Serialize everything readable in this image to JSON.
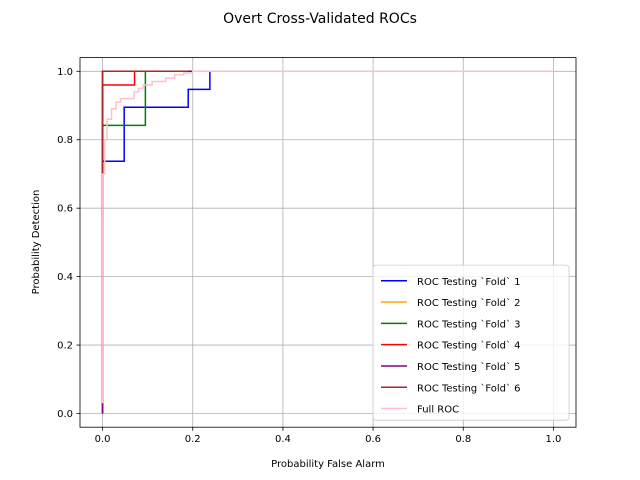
{
  "chart_data": {
    "type": "line",
    "title": "Overt Cross-Validated ROCs",
    "xlabel": "Probability False Alarm",
    "ylabel": "Probability Detection",
    "xlim": [
      -0.05,
      1.05
    ],
    "ylim": [
      -0.04,
      1.04
    ],
    "xticks": [
      0.0,
      0.2,
      0.4,
      0.6,
      0.8,
      1.0
    ],
    "xtick_labels": [
      "0.0",
      "0.2",
      "0.4",
      "0.6",
      "0.8",
      "1.0"
    ],
    "yticks": [
      0.0,
      0.2,
      0.4,
      0.6,
      0.8,
      1.0
    ],
    "ytick_labels": [
      "0.0",
      "0.2",
      "0.4",
      "0.6",
      "0.8",
      "1.0"
    ],
    "grid": true,
    "legend_position": "lower-right",
    "series": [
      {
        "name": "ROC Testing `Fold` 1",
        "color": "#0000ff",
        "x": [
          0.0,
          0.0,
          0.0,
          0.048,
          0.048,
          0.19,
          0.19,
          0.238,
          0.238,
          1.0
        ],
        "y": [
          0.0,
          0.737,
          0.737,
          0.737,
          0.895,
          0.895,
          0.947,
          0.947,
          1.0,
          1.0
        ]
      },
      {
        "name": "ROC Testing `Fold` 2",
        "color": "#ffa500",
        "x": [
          0.0,
          0.0,
          1.0
        ],
        "y": [
          0.0,
          1.0,
          1.0
        ]
      },
      {
        "name": "ROC Testing `Fold` 3",
        "color": "#008000",
        "x": [
          0.0,
          0.0,
          0.095,
          0.095,
          1.0
        ],
        "y": [
          0.0,
          0.842,
          0.842,
          1.0,
          1.0
        ]
      },
      {
        "name": "ROC Testing `Fold` 4",
        "color": "#ff0000",
        "x": [
          0.0,
          0.0,
          0.0,
          0.071,
          0.071,
          0.19
        ],
        "y": [
          0.56,
          0.96,
          0.96,
          0.96,
          1.0,
          1.0
        ]
      },
      {
        "name": "ROC Testing `Fold` 5",
        "color": "#800080",
        "x": [
          0.0,
          0.0,
          1.0
        ],
        "y": [
          0.0,
          1.0,
          1.0
        ]
      },
      {
        "name": "ROC Testing `Fold` 6",
        "color": "#a52a2a",
        "x": [
          0.0,
          0.0,
          0.19
        ],
        "y": [
          0.56,
          1.0,
          1.0
        ]
      },
      {
        "name": "Full ROC",
        "color": "#ffc0cb",
        "x": [
          0.0,
          0.0,
          0.005,
          0.005,
          0.01,
          0.01,
          0.02,
          0.02,
          0.03,
          0.03,
          0.04,
          0.04,
          0.07,
          0.07,
          0.08,
          0.08,
          0.09,
          0.09,
          0.11,
          0.11,
          0.14,
          0.14,
          0.16,
          0.16,
          0.18,
          0.18,
          0.2,
          0.2,
          0.24,
          0.24,
          1.0
        ],
        "y": [
          0.03,
          0.7,
          0.7,
          0.8,
          0.8,
          0.86,
          0.86,
          0.89,
          0.89,
          0.91,
          0.91,
          0.92,
          0.92,
          0.94,
          0.94,
          0.95,
          0.95,
          0.96,
          0.96,
          0.97,
          0.97,
          0.98,
          0.98,
          0.99,
          0.99,
          0.995,
          0.995,
          1.0,
          1.0,
          1.0,
          1.0
        ]
      }
    ]
  }
}
